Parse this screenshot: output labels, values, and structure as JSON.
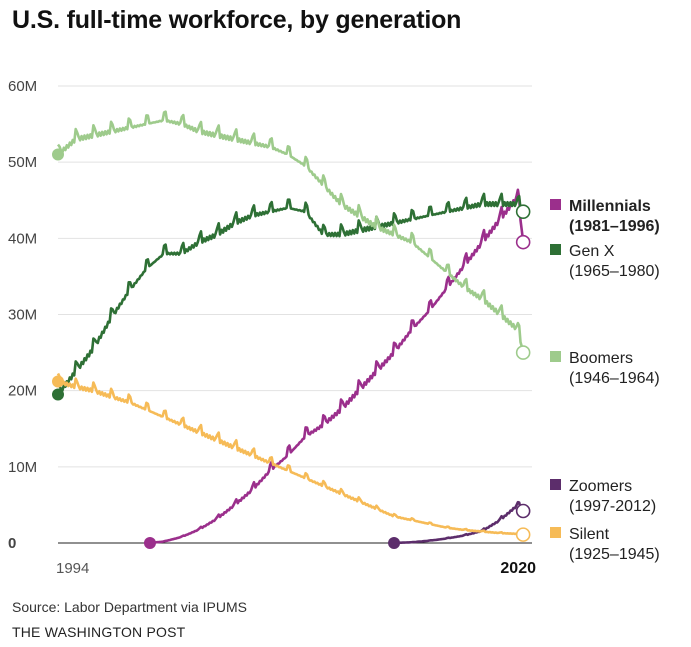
{
  "title": "U.S. full-time workforce, by generation",
  "source": "Source: Labor Department via IPUMS",
  "credit": "THE WASHINGTON POST",
  "chart_data": {
    "type": "line",
    "title": "U.S. full-time workforce, by generation",
    "x_start_label": "1994",
    "x_end_label": "2020",
    "xlim": [
      1994,
      2020.8
    ],
    "ylim": [
      0,
      60
    ],
    "y_ticks": [
      0,
      10,
      20,
      30,
      40,
      50,
      60
    ],
    "y_tick_labels": [
      "0",
      "10M",
      "20M",
      "30M",
      "40M",
      "50M",
      "60M"
    ],
    "grid": true,
    "legend": "right",
    "series": [
      {
        "name": "Millennials (1981–1996)",
        "line1": "Millennials",
        "line2": "(1981–1996)",
        "bold": true,
        "color": "#9b2f8c",
        "x": [
          1999.2,
          2000,
          2001,
          2002,
          2003,
          2004,
          2005,
          2006,
          2007,
          2008,
          2009,
          2010,
          2011,
          2012,
          2013,
          2014,
          2015,
          2016,
          2017,
          2018,
          2019,
          2020,
          2020.3
        ],
        "y": [
          0,
          0.2,
          0.8,
          1.8,
          3.2,
          5,
          7,
          9.5,
          11.5,
          14,
          15.5,
          17.5,
          20,
          22.5,
          25,
          28,
          30.5,
          33.5,
          36.5,
          39.5,
          42.5,
          45.5,
          39.5
        ]
      },
      {
        "name": "Gen X (1965–1980)",
        "line1": "Gen X",
        "line2": "(1965–1980)",
        "bold": false,
        "color": "#2e7035",
        "x": [
          1994,
          1995,
          1996,
          1997,
          1998,
          1999,
          2000,
          2001,
          2002,
          2003,
          2004,
          2005,
          2006,
          2007,
          2008,
          2009,
          2010,
          2011,
          2012,
          2013,
          2014,
          2015,
          2016,
          2017,
          2018,
          2019,
          2020,
          2020.3
        ],
        "y": [
          19.5,
          22.5,
          25.5,
          29.5,
          33,
          36,
          38,
          38,
          39.5,
          40.5,
          42,
          43,
          43.5,
          44,
          43.5,
          40.5,
          40.5,
          41,
          41.5,
          42,
          42.5,
          43,
          43.5,
          44,
          44.5,
          44.5,
          44.5,
          43.5
        ]
      },
      {
        "name": "Boomers (1946–1964)",
        "line1": "Boomers",
        "line2": "(1946–1964)",
        "bold": false,
        "color": "#9ecb8c",
        "x": [
          1994,
          1995,
          1996,
          1997,
          1998,
          1999,
          2000,
          2001,
          2002,
          2003,
          2004,
          2005,
          2006,
          2007,
          2008,
          2009,
          2010,
          2011,
          2012,
          2013,
          2014,
          2015,
          2016,
          2017,
          2018,
          2019,
          2020,
          2020.3
        ],
        "y": [
          51,
          53,
          53.5,
          54,
          54.5,
          55,
          55.5,
          55,
          54,
          53.5,
          53,
          52.5,
          52,
          51,
          49.5,
          47,
          44.5,
          43,
          41.5,
          40.5,
          39.5,
          37.5,
          35.5,
          33.5,
          32,
          30,
          28,
          25
        ]
      },
      {
        "name": "Zoomers (1997-2012)",
        "line1": "Zoomers",
        "line2": "(1997-2012)",
        "bold": false,
        "color": "#5c2d6b",
        "x": [
          2013,
          2014,
          2015,
          2016,
          2017,
          2018,
          2019,
          2020,
          2020.3
        ],
        "y": [
          0,
          0.1,
          0.3,
          0.6,
          1,
          1.6,
          3,
          5,
          4.2
        ]
      },
      {
        "name": "Silent (1925–1945)",
        "line1": "Silent",
        "line2": "(1925–1945)",
        "bold": false,
        "color": "#f6bb57",
        "x": [
          1994,
          1995,
          1996,
          1997,
          1998,
          1999,
          2000,
          2001,
          2002,
          2003,
          2004,
          2005,
          2006,
          2007,
          2008,
          2009,
          2010,
          2011,
          2012,
          2013,
          2014,
          2015,
          2016,
          2017,
          2018,
          2019,
          2020,
          2020.3
        ],
        "y": [
          21.2,
          20.5,
          20,
          19.2,
          18.5,
          17.5,
          16.5,
          15.5,
          14.5,
          13.5,
          12.5,
          11.5,
          10.5,
          9.5,
          8.5,
          7.5,
          6.5,
          5.5,
          4.5,
          3.5,
          3,
          2.5,
          2,
          1.7,
          1.5,
          1.3,
          1.2,
          1.1
        ]
      }
    ]
  }
}
